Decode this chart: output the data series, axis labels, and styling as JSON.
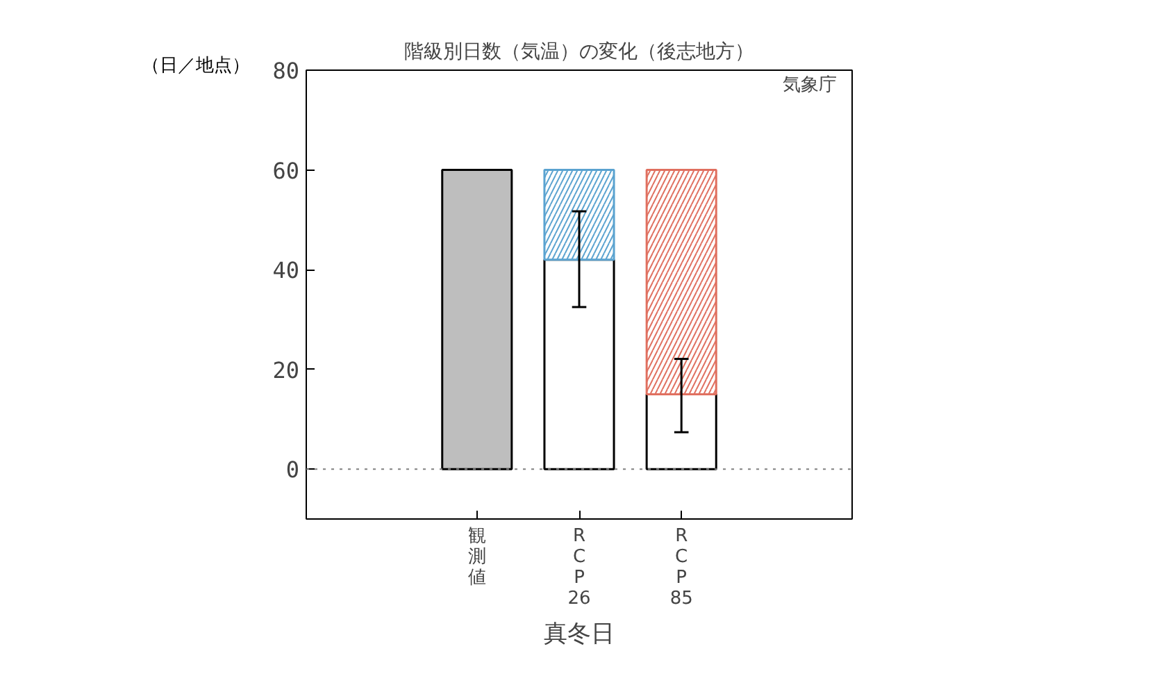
{
  "chart_data": {
    "type": "bar",
    "title": "階級別日数（気温）の変化（後志地方）",
    "ylabel": "（日／地点）",
    "xlabel": "真冬日",
    "annotations": [
      "気象庁"
    ],
    "categories": [
      "観測値",
      "RCP26",
      "RCP85"
    ],
    "stacked": true,
    "series": [
      {
        "color": "#bebebe",
        "values": [
          60,
          null,
          null
        ]
      },
      {
        "color": "#ffffff",
        "values": [
          null,
          42,
          15
        ],
        "errors": [
          null,
          [
            32.5,
            51.7
          ],
          [
            7.4,
            22.1
          ]
        ]
      },
      {
        "colors": [
          null,
          "#5ba3d0",
          "#e07060"
        ],
        "values": [
          null,
          18,
          45
        ]
      }
    ],
    "ylim": [
      -10,
      80
    ],
    "yticks": [
      0,
      20,
      40,
      60,
      80
    ],
    "ref_lines": [
      {
        "axis": "y",
        "value": 0
      }
    ],
    "grid": false
  }
}
